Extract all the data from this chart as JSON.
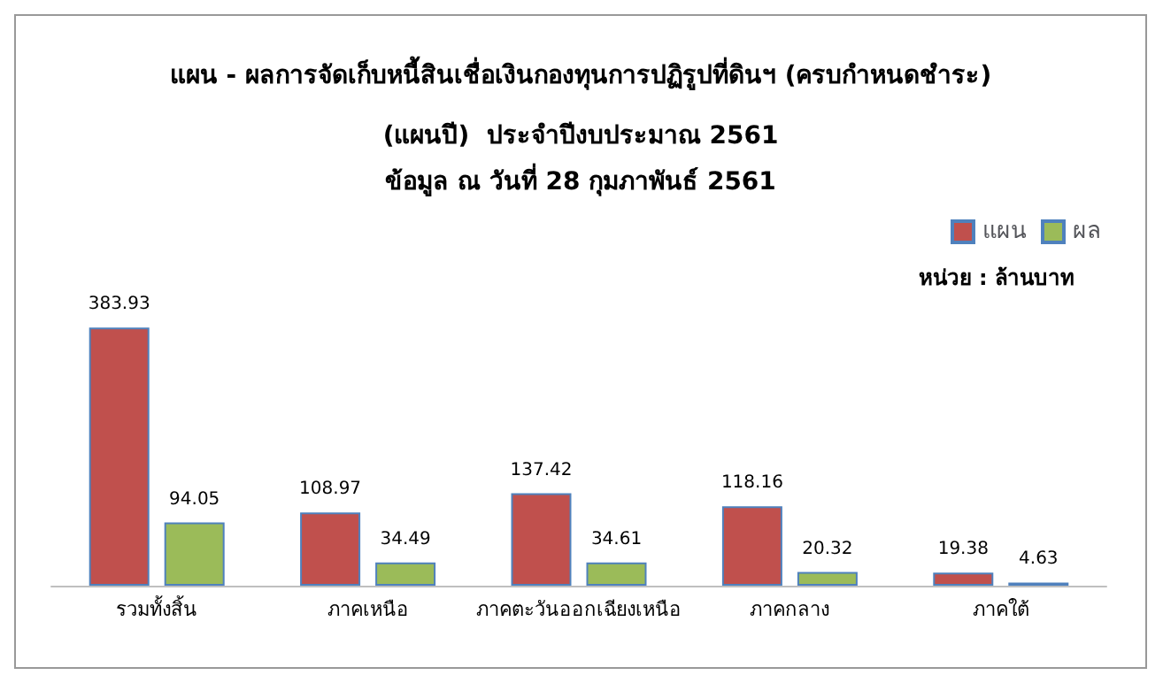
{
  "chart_data": {
    "type": "bar",
    "title": "แผน - ผลการจัดเก็บหนี้สินเชื่อเงินกองทุนการปฏิรูปที่ดินฯ (ครบกำหนดชำระ)",
    "subtitle": "(แผนปี)  ประจำปีงบประมาณ 2561\nข้อมูล ณ วันที่ 28 กุมภาพันธ์ 2561",
    "annotations": [
      "หน่วย : ล้านบาท"
    ],
    "categories": [
      "รวมทั้งสิ้น",
      "ภาคเหนือ",
      "ภาคตะวันออกเฉียงเหนือ",
      "ภาคกลาง",
      "ภาคใต้"
    ],
    "series": [
      {
        "name": "แผน",
        "color": "#c0504d",
        "values": [
          383.93,
          108.97,
          137.42,
          118.16,
          19.38
        ]
      },
      {
        "name": "ผล",
        "color": "#9bbb59",
        "values": [
          94.05,
          34.49,
          34.61,
          20.32,
          4.63
        ]
      }
    ],
    "data_labels": true,
    "legend": "top right"
  }
}
